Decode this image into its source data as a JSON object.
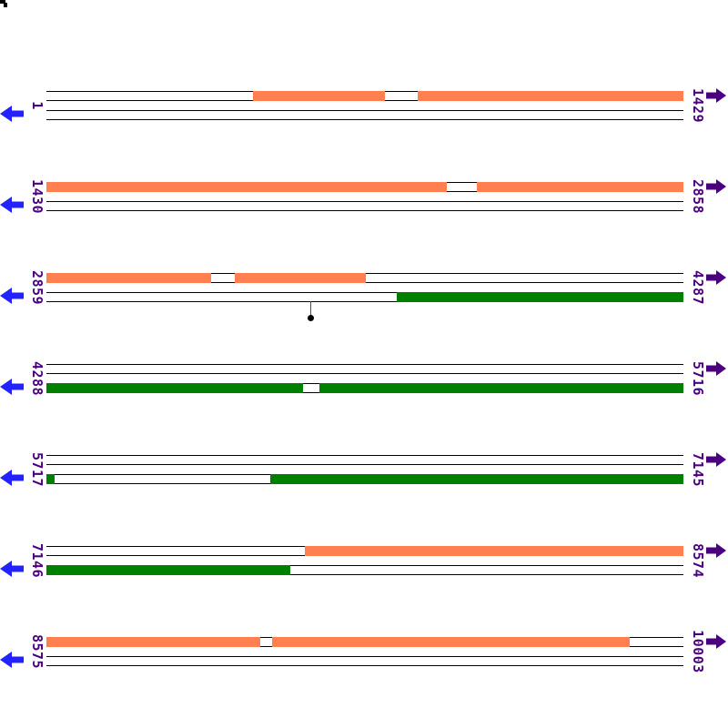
{
  "diagram": {
    "description": "Seven-row genome sequence map with forward (top pair) and reverse (bottom pair) strand tracks, coral and green feature bars, and per-row start/end coordinates",
    "sequence_range": {
      "first_position": "1",
      "last_position": "10003"
    }
  },
  "colors": {
    "background": "#FFFFFF",
    "track_line": "#000000",
    "orange": "#FF7F50",
    "green": "#008000",
    "left_arrow_blue": "#2222FF",
    "right_arrow_purple": "#4B0082",
    "label_purple": "#4B0082",
    "marker_stem_red": "#FF0000",
    "marker_dot_black": "#000000"
  },
  "icons": {
    "left_arrow": "left-strand-arrow-icon",
    "right_arrow": "right-strand-arrow-icon",
    "marker": "lollipop-marker-icon",
    "corner": "corner-glyph-fragment"
  },
  "rows": [
    {
      "start_label": "1",
      "end_label": "1429",
      "bars": [
        {
          "strand": "top",
          "color": "orange",
          "segments": [
            [
              0.324,
              0.531
            ],
            [
              0.583,
              1.0
            ]
          ]
        }
      ]
    },
    {
      "start_label": "1430",
      "end_label": "2858",
      "bars": [
        {
          "strand": "top",
          "color": "orange",
          "segments": [
            [
              0.0,
              0.629
            ],
            [
              0.676,
              1.0
            ]
          ]
        }
      ]
    },
    {
      "start_label": "2859",
      "end_label": "4287",
      "bars": [
        {
          "strand": "top",
          "color": "orange",
          "segments": [
            [
              0.0,
              0.259
            ],
            [
              0.296,
              0.501
            ]
          ]
        },
        {
          "strand": "bottom",
          "color": "green",
          "segments": [
            [
              0.55,
              1.0
            ]
          ]
        }
      ],
      "marker": {
        "type": "lollipop",
        "fraction": 0.4143
      }
    },
    {
      "start_label": "4288",
      "end_label": "5716",
      "bars": [
        {
          "strand": "bottom",
          "color": "green",
          "segments": [
            [
              0.0,
              0.403
            ],
            [
              0.429,
              1.0
            ]
          ]
        }
      ]
    },
    {
      "start_label": "5717",
      "end_label": "7145",
      "bars": [
        {
          "strand": "bottom",
          "color": "green",
          "segments": [
            [
              0.0,
              0.013
            ],
            [
              0.351,
              1.0
            ]
          ]
        }
      ]
    },
    {
      "start_label": "7146",
      "end_label": "8574",
      "bars": [
        {
          "strand": "top",
          "color": "orange",
          "segments": [
            [
              0.406,
              1.0
            ]
          ]
        },
        {
          "strand": "bottom",
          "color": "green",
          "segments": [
            [
              0.0,
              0.383
            ]
          ]
        }
      ]
    },
    {
      "start_label": "8575",
      "end_label": "10003",
      "bars": [
        {
          "strand": "top",
          "color": "orange",
          "segments": [
            [
              0.0,
              0.336
            ],
            [
              0.354,
              0.916
            ]
          ]
        }
      ]
    }
  ]
}
